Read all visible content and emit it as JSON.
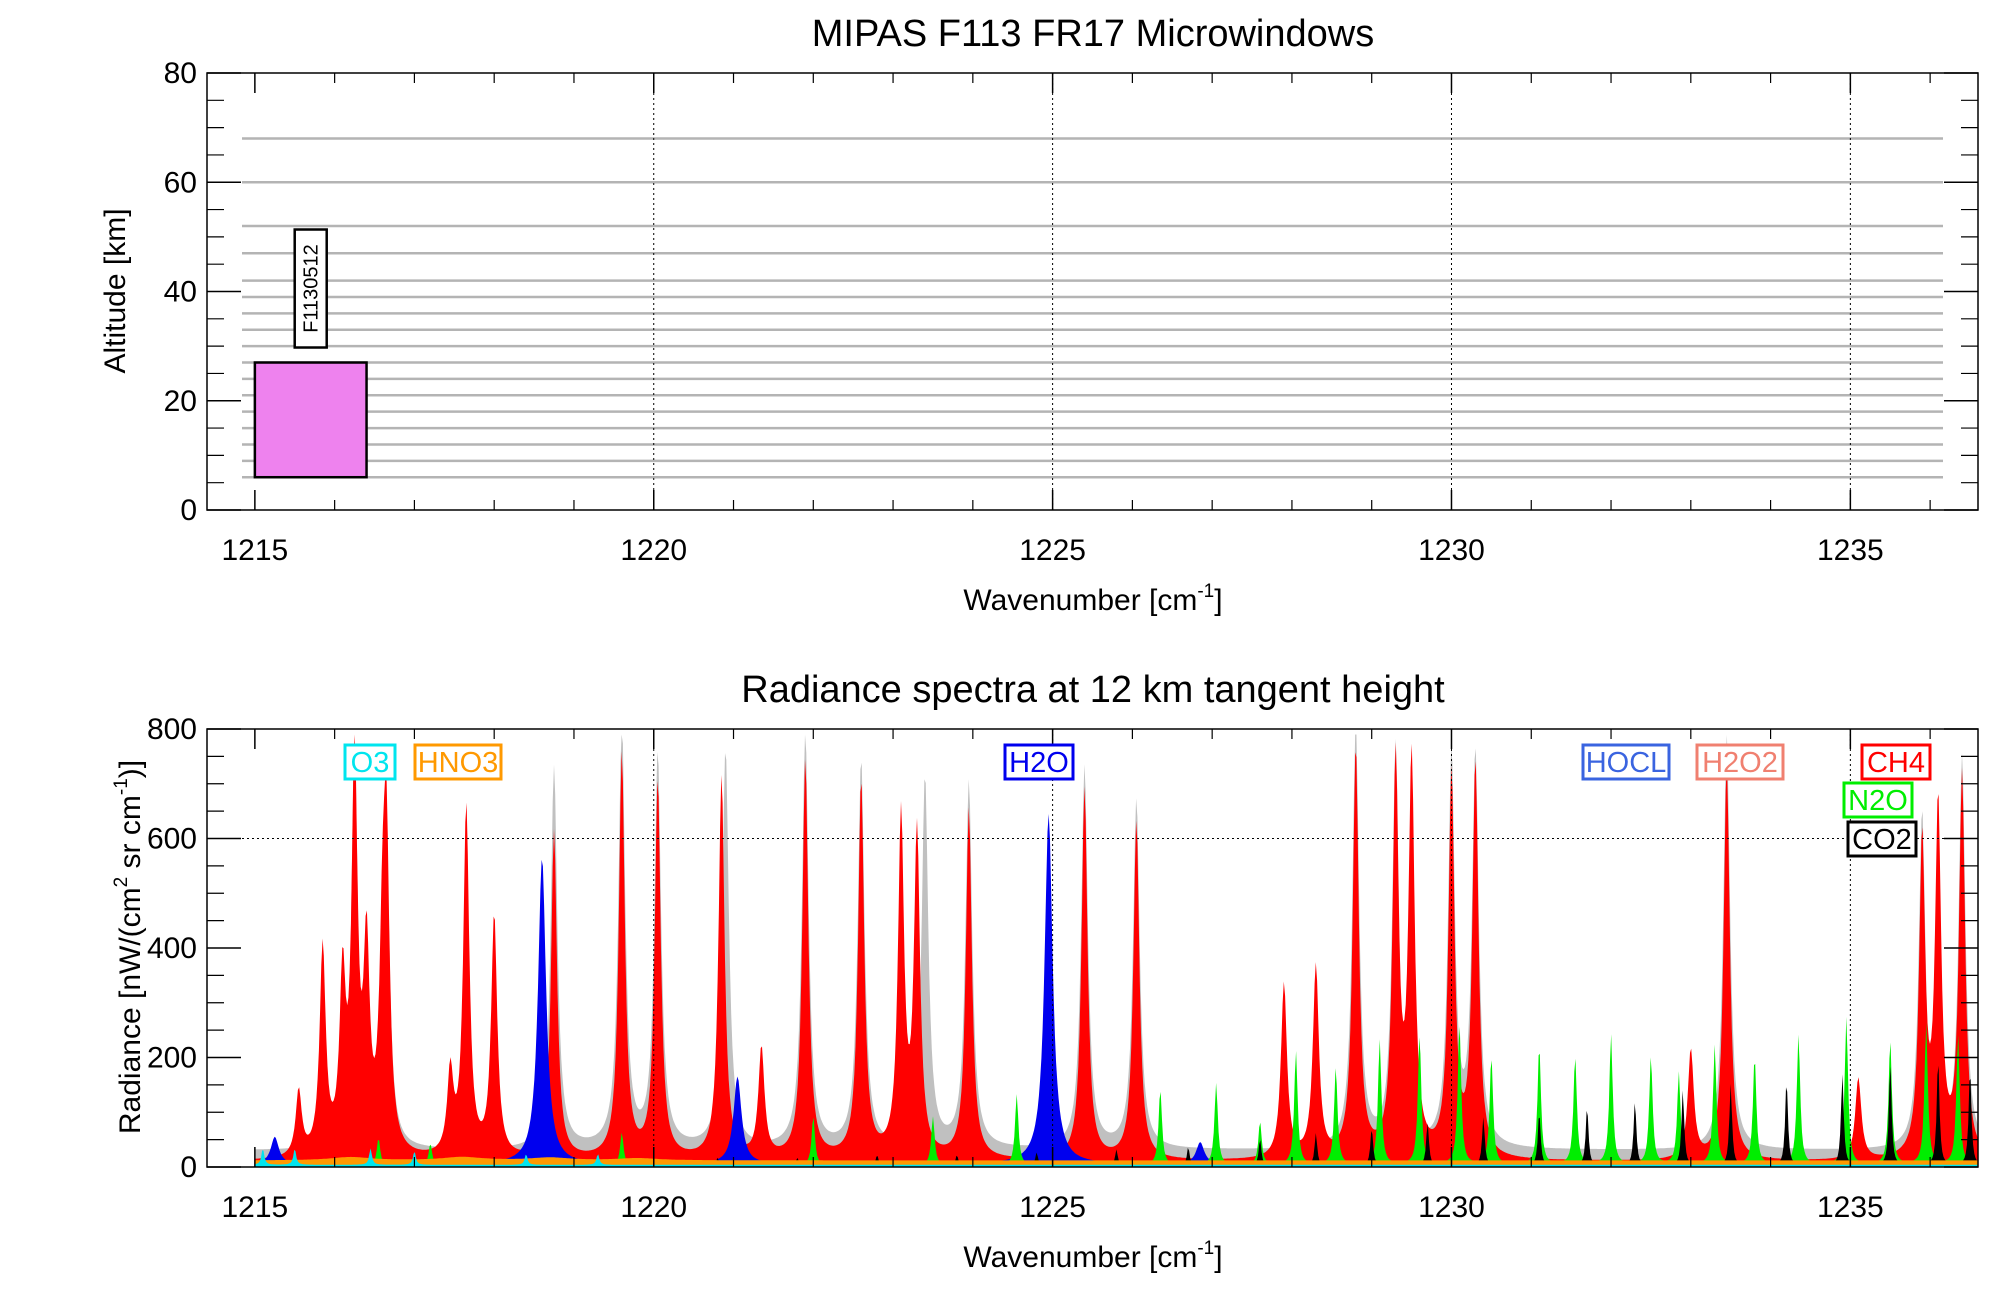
{
  "chart_data": [
    {
      "type": "bar",
      "title": "MIPAS F113 FR17 Microwindows",
      "xlabel": "Wavenumber [cm",
      "xlabel_sup": "-1",
      "xlabel_close": "]",
      "ylabel": "Altitude [km]",
      "xlim": [
        1214.4,
        1236.6
      ],
      "ylim": [
        0,
        80
      ],
      "xticks": [
        "1215",
        "1220",
        "1225",
        "1230",
        "1235"
      ],
      "xtick_values": [
        1215,
        1220,
        1225,
        1230,
        1235
      ],
      "yticks": [
        "0",
        "20",
        "40",
        "60",
        "80"
      ],
      "ytick_values": [
        0,
        20,
        40,
        60,
        80
      ],
      "x_gridlines": [
        1220,
        1225,
        1230,
        1235
      ],
      "tangent_altitudes_km": [
        6,
        9,
        12,
        15,
        18,
        21,
        24,
        27,
        30,
        33,
        36,
        39,
        42,
        47,
        52,
        60,
        68
      ],
      "microwindows": [
        {
          "label": "F1130512",
          "x_start": 1215.0,
          "x_end": 1216.4,
          "alt_min": 6,
          "alt_max": 27,
          "color": "#ee82ee"
        }
      ]
    },
    {
      "type": "area",
      "title": "Radiance spectra at 12 km tangent height",
      "xlabel": "Wavenumber [cm",
      "xlabel_sup": "-1",
      "xlabel_close": "]",
      "ylabel_parts": [
        "Radiance [nW/(cm",
        "2",
        " sr cm",
        "-1",
        ")]"
      ],
      "xlim": [
        1214.4,
        1236.6
      ],
      "ylim": [
        0,
        800
      ],
      "xticks": [
        "1215",
        "1220",
        "1225",
        "1230",
        "1235"
      ],
      "xtick_values": [
        1215,
        1220,
        1225,
        1230,
        1235
      ],
      "yticks": [
        "0",
        "200",
        "400",
        "600",
        "800"
      ],
      "ytick_values": [
        0,
        200,
        400,
        600,
        800
      ],
      "y_gridlines": [
        600
      ],
      "x_gridlines": [
        1220,
        1225,
        1230,
        1235
      ],
      "legend": [
        {
          "name": "O3",
          "color": "#00e5ee"
        },
        {
          "name": "HNO3",
          "color": "#ff9900"
        },
        {
          "name": "H2O",
          "color": "#0000ee"
        },
        {
          "name": "HOCL",
          "color": "#3a64e0"
        },
        {
          "name": "H2O2",
          "color": "#f08070"
        },
        {
          "name": "CH4",
          "color": "#ff0000"
        },
        {
          "name": "N2O",
          "color": "#00ee00"
        },
        {
          "name": "CO2",
          "color": "#000000"
        }
      ],
      "series": [
        {
          "name": "Total",
          "color": "#c0c0c0",
          "baseline": 30,
          "width": 0.05,
          "lines": [
            [
              1216.25,
              740
            ],
            [
              1216.65,
              560
            ],
            [
              1218.75,
              700
            ],
            [
              1219.6,
              780
            ],
            [
              1220.05,
              720
            ],
            [
              1220.9,
              730
            ],
            [
              1221.9,
              760
            ],
            [
              1222.6,
              710
            ],
            [
              1223.4,
              680
            ],
            [
              1223.95,
              670
            ],
            [
              1225.4,
              700
            ],
            [
              1226.05,
              640
            ],
            [
              1228.8,
              780
            ],
            [
              1229.3,
              740
            ],
            [
              1230.0,
              720
            ],
            [
              1230.3,
              720
            ],
            [
              1233.45,
              760
            ],
            [
              1235.9,
              620
            ],
            [
              1236.4,
              720
            ]
          ]
        },
        {
          "name": "CH4",
          "color": "#ff0000",
          "baseline": 10,
          "width": 0.045,
          "lines": [
            [
              1215.55,
              120
            ],
            [
              1215.85,
              380
            ],
            [
              1216.1,
              310
            ],
            [
              1216.25,
              720
            ],
            [
              1216.4,
              360
            ],
            [
              1216.6,
              320
            ],
            [
              1216.65,
              530
            ],
            [
              1217.45,
              150
            ],
            [
              1217.65,
              640
            ],
            [
              1218.0,
              440
            ],
            [
              1218.75,
              600
            ],
            [
              1219.6,
              740
            ],
            [
              1220.05,
              690
            ],
            [
              1220.85,
              700
            ],
            [
              1221.35,
              200
            ],
            [
              1221.9,
              730
            ],
            [
              1222.6,
              690
            ],
            [
              1223.1,
              620
            ],
            [
              1223.3,
              590
            ],
            [
              1223.95,
              640
            ],
            [
              1225.4,
              680
            ],
            [
              1226.05,
              620
            ],
            [
              1227.9,
              320
            ],
            [
              1228.3,
              350
            ],
            [
              1228.8,
              750
            ],
            [
              1229.3,
              720
            ],
            [
              1229.5,
              720
            ],
            [
              1230.0,
              700
            ],
            [
              1230.3,
              720
            ],
            [
              1233.0,
              200
            ],
            [
              1233.45,
              730
            ],
            [
              1235.1,
              150
            ],
            [
              1235.9,
              580
            ],
            [
              1236.1,
              640
            ],
            [
              1236.4,
              700
            ]
          ]
        },
        {
          "name": "H2O",
          "color": "#0000ee",
          "baseline": 5,
          "width": 0.06,
          "lines": [
            [
              1215.25,
              50
            ],
            [
              1218.6,
              560
            ],
            [
              1221.05,
              160
            ],
            [
              1224.95,
              640
            ],
            [
              1226.85,
              40
            ]
          ]
        },
        {
          "name": "N2O",
          "color": "#00ee00",
          "baseline": 3,
          "width": 0.025,
          "lines": [
            [
              1216.55,
              50
            ],
            [
              1217.2,
              40
            ],
            [
              1219.6,
              60
            ],
            [
              1222.0,
              90
            ],
            [
              1223.5,
              90
            ],
            [
              1224.55,
              130
            ],
            [
              1226.35,
              140
            ],
            [
              1227.05,
              150
            ],
            [
              1227.6,
              80
            ],
            [
              1228.05,
              210
            ],
            [
              1228.55,
              180
            ],
            [
              1229.1,
              230
            ],
            [
              1229.6,
              240
            ],
            [
              1230.1,
              260
            ],
            [
              1230.5,
              200
            ],
            [
              1231.1,
              220
            ],
            [
              1231.55,
              200
            ],
            [
              1232.0,
              240
            ],
            [
              1232.5,
              200
            ],
            [
              1232.85,
              170
            ],
            [
              1233.3,
              220
            ],
            [
              1233.8,
              200
            ],
            [
              1234.35,
              240
            ],
            [
              1234.95,
              270
            ],
            [
              1235.5,
              230
            ],
            [
              1235.95,
              260
            ],
            [
              1236.35,
              240
            ]
          ]
        },
        {
          "name": "CO2",
          "color": "#000000",
          "baseline": 2,
          "width": 0.02,
          "lines": [
            [
              1220.8,
              15
            ],
            [
              1221.8,
              15
            ],
            [
              1222.8,
              20
            ],
            [
              1223.8,
              20
            ],
            [
              1224.8,
              25
            ],
            [
              1225.8,
              30
            ],
            [
              1226.7,
              35
            ],
            [
              1227.6,
              50
            ],
            [
              1228.3,
              60
            ],
            [
              1229.0,
              70
            ],
            [
              1229.7,
              80
            ],
            [
              1230.4,
              90
            ],
            [
              1231.1,
              100
            ],
            [
              1231.7,
              110
            ],
            [
              1232.3,
              120
            ],
            [
              1232.9,
              140
            ],
            [
              1233.5,
              150
            ],
            [
              1234.2,
              160
            ],
            [
              1234.9,
              170
            ],
            [
              1235.5,
              190
            ],
            [
              1236.1,
              200
            ],
            [
              1236.5,
              180
            ]
          ]
        },
        {
          "name": "HNO3",
          "color": "#ff9900",
          "baseline": 12,
          "width": 0.3,
          "lines": [
            [
              1216.2,
              6
            ],
            [
              1217.6,
              6
            ],
            [
              1218.7,
              5
            ],
            [
              1219.8,
              4
            ]
          ]
        },
        {
          "name": "O3",
          "color": "#00e5ee",
          "baseline": 4,
          "width": 0.02,
          "lines": [
            [
              1215.1,
              30
            ],
            [
              1215.5,
              30
            ],
            [
              1216.45,
              30
            ],
            [
              1217.0,
              25
            ],
            [
              1218.4,
              20
            ],
            [
              1219.3,
              20
            ]
          ]
        }
      ]
    }
  ]
}
